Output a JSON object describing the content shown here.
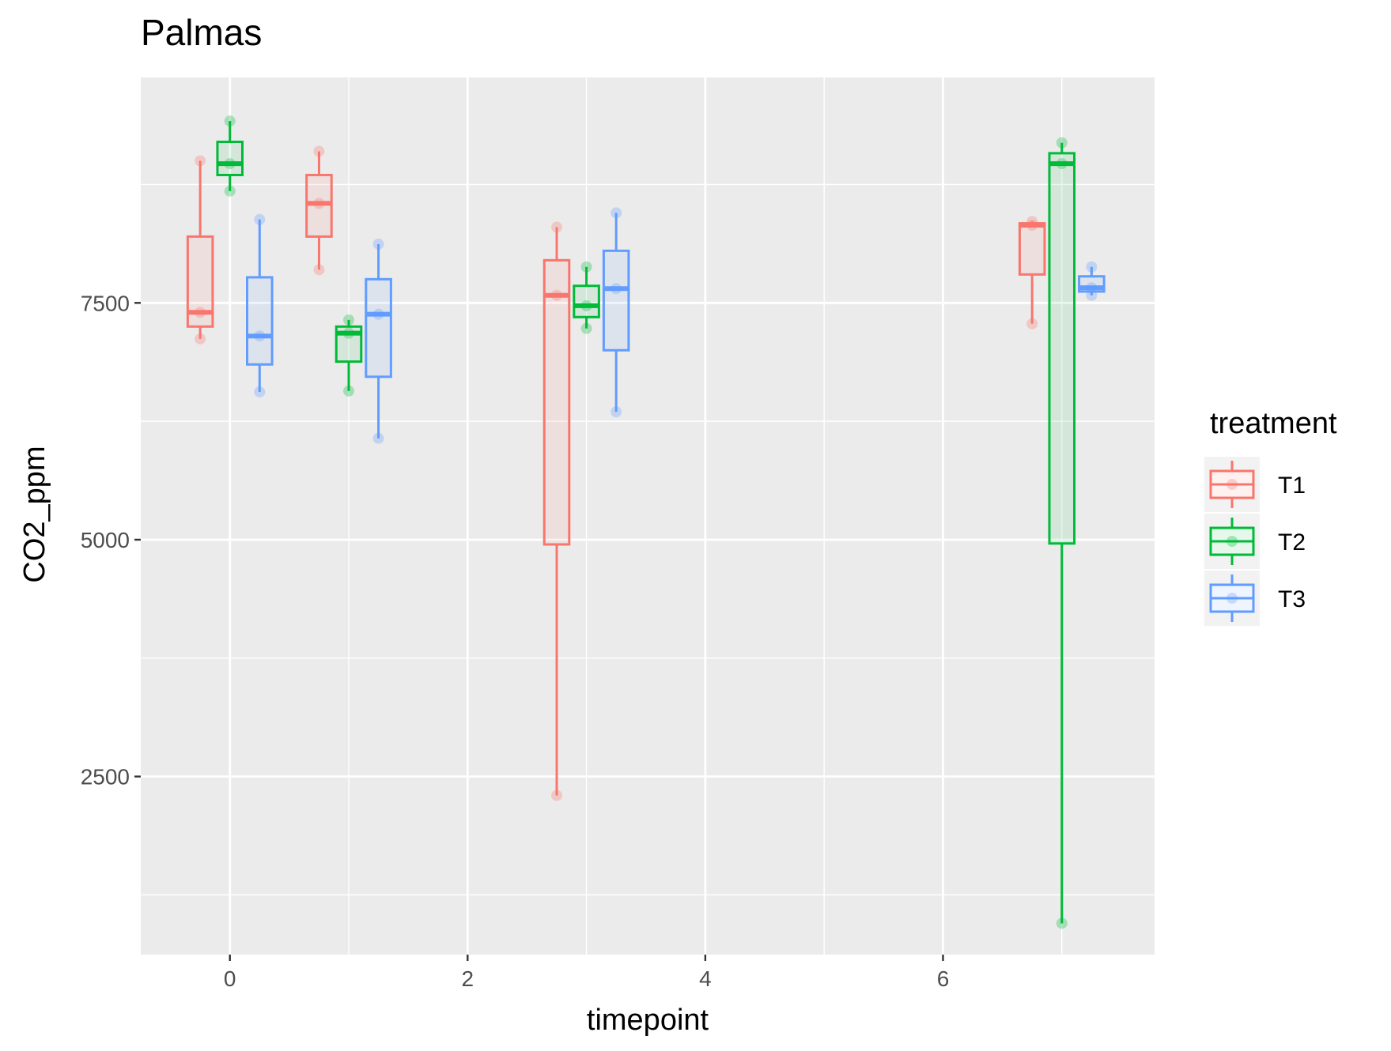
{
  "chart_data": {
    "type": "boxplot",
    "title": "Palmas",
    "xlabel": "timepoint",
    "ylabel": "CO2_ppm",
    "x_ticks": [
      0,
      2,
      4,
      6
    ],
    "y_ticks": [
      2500,
      5000,
      7500
    ],
    "xlim": [
      -0.75,
      7.78
    ],
    "ylim": [
      620,
      9880
    ],
    "grid": true,
    "legend": {
      "title": "treatment",
      "position": "right",
      "entries": [
        "T1",
        "T2",
        "T3"
      ]
    },
    "colors": {
      "T1": "#F8766D",
      "T2": "#00BA38",
      "T3": "#619CFF",
      "panel": "#EBEBEB",
      "grid": "#FFFFFF"
    },
    "series": [
      {
        "name": "T1",
        "color": "#F8766D",
        "boxes": [
          {
            "x": -0.25,
            "min": 7120,
            "q1": 7250,
            "median": 7400,
            "q3": 8200,
            "max": 9000,
            "points": [
              7120,
              7400,
              9000
            ]
          },
          {
            "x": 0.75,
            "min": 7850,
            "q1": 8200,
            "median": 8550,
            "q3": 8850,
            "max": 9100,
            "points": [
              7850,
              8550,
              9100
            ]
          },
          {
            "x": 2.75,
            "min": 2300,
            "q1": 4950,
            "median": 7580,
            "q3": 7950,
            "max": 8300,
            "points": [
              2300,
              7580,
              8300
            ]
          },
          {
            "x": 6.75,
            "min": 7280,
            "q1": 7800,
            "median": 8320,
            "q3": 8340,
            "max": 8360,
            "points": [
              7280,
              8320,
              8360
            ]
          }
        ]
      },
      {
        "name": "T2",
        "color": "#00BA38",
        "boxes": [
          {
            "x": 0.0,
            "min": 8680,
            "q1": 8850,
            "median": 8970,
            "q3": 9200,
            "max": 9420,
            "points": [
              8680,
              8970,
              9420
            ]
          },
          {
            "x": 1.0,
            "min": 6570,
            "q1": 6880,
            "median": 7180,
            "q3": 7250,
            "max": 7320,
            "points": [
              6570,
              7180,
              7320
            ]
          },
          {
            "x": 3.0,
            "min": 7230,
            "q1": 7350,
            "median": 7470,
            "q3": 7680,
            "max": 7880,
            "points": [
              7230,
              7470,
              7880
            ]
          },
          {
            "x": 7.0,
            "min": 950,
            "q1": 4960,
            "median": 8970,
            "q3": 9080,
            "max": 9190,
            "points": [
              950,
              8970,
              9190
            ]
          }
        ]
      },
      {
        "name": "T3",
        "color": "#619CFF",
        "boxes": [
          {
            "x": 0.25,
            "min": 6560,
            "q1": 6850,
            "median": 7150,
            "q3": 7770,
            "max": 8380,
            "points": [
              6560,
              7150,
              8380
            ]
          },
          {
            "x": 1.25,
            "min": 6070,
            "q1": 6720,
            "median": 7380,
            "q3": 7750,
            "max": 8120,
            "points": [
              6070,
              7380,
              8120
            ]
          },
          {
            "x": 3.25,
            "min": 6350,
            "q1": 7000,
            "median": 7650,
            "q3": 8050,
            "max": 8450,
            "points": [
              6350,
              7650,
              8450
            ]
          },
          {
            "x": 7.25,
            "min": 7580,
            "q1": 7620,
            "median": 7660,
            "q3": 7780,
            "max": 7880,
            "points": [
              7580,
              7660,
              7880
            ]
          }
        ]
      }
    ]
  }
}
